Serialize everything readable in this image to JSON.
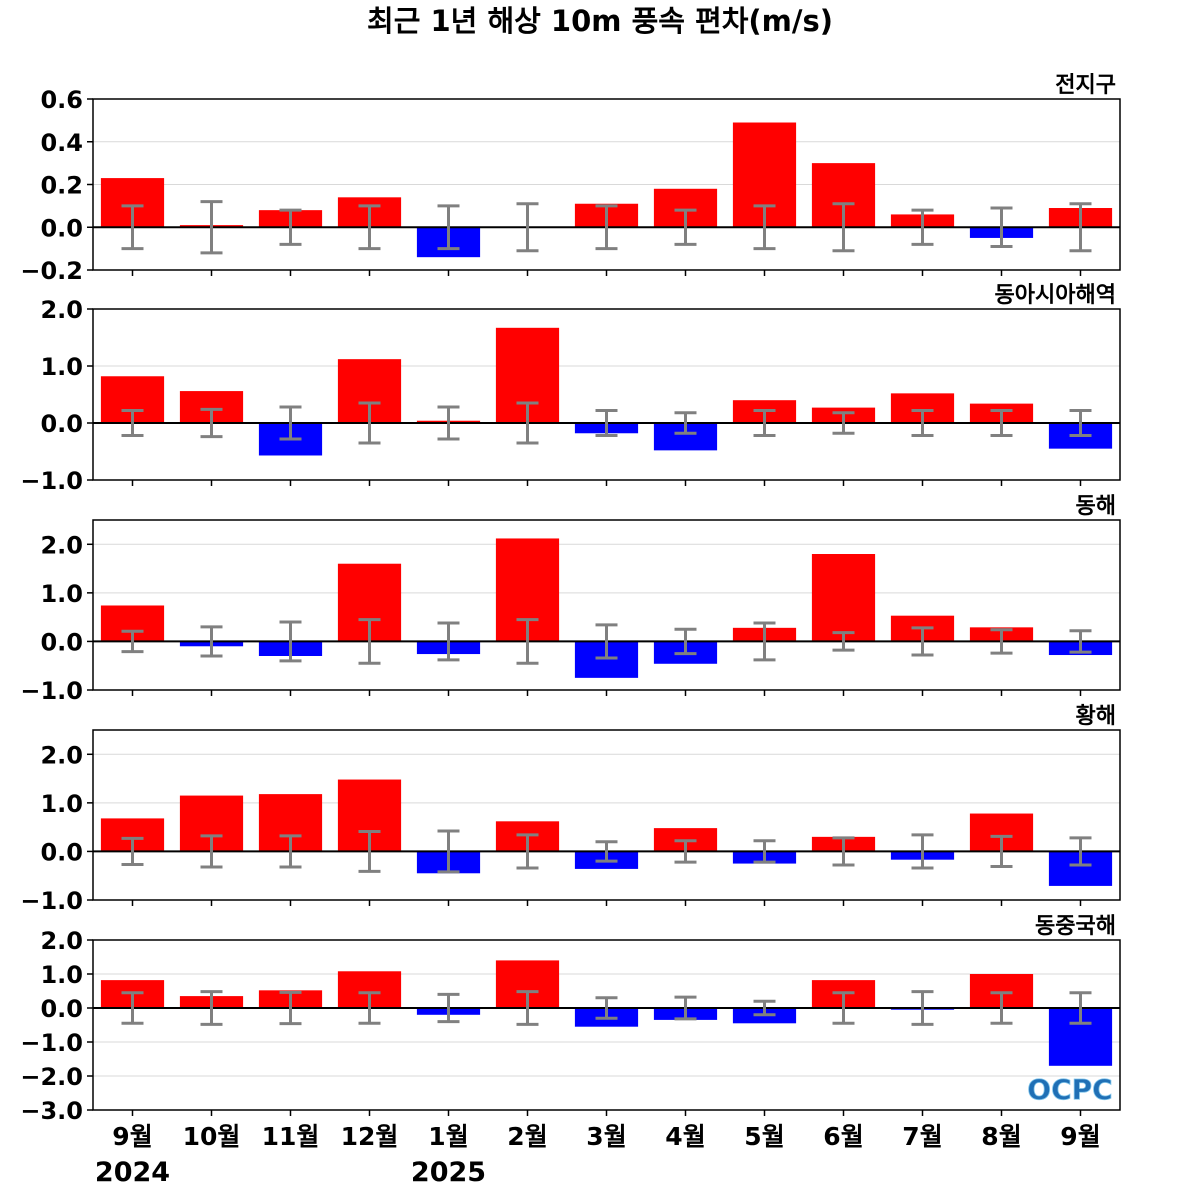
{
  "title": "최근 1년 해상 10m 풍속 편차(m/s)",
  "logo_text": "OCPC",
  "colors": {
    "positive": "#ff0000",
    "negative": "#0000ff",
    "errorbar": "#808080",
    "grid": "#d9d9d9",
    "zero": "#000000"
  },
  "x_axis": {
    "categories": [
      "9월",
      "10월",
      "11월",
      "12월",
      "1월",
      "2월",
      "3월",
      "4월",
      "5월",
      "6월",
      "7월",
      "8월",
      "9월"
    ],
    "years": [
      {
        "label": "2024",
        "index": 0
      },
      {
        "label": "2025",
        "index": 4
      }
    ]
  },
  "chart_data": [
    {
      "type": "bar",
      "title": "전지구",
      "categories": [
        "9월",
        "10월",
        "11월",
        "12월",
        "1월",
        "2월",
        "3월",
        "4월",
        "5월",
        "6월",
        "7월",
        "8월",
        "9월"
      ],
      "values": [
        0.23,
        0.01,
        0.08,
        0.14,
        -0.14,
        0.0,
        0.11,
        0.18,
        0.49,
        0.3,
        0.06,
        -0.05,
        0.09
      ],
      "errorbar": [
        0.1,
        0.12,
        0.08,
        0.1,
        0.1,
        0.11,
        0.1,
        0.08,
        0.1,
        0.11,
        0.08,
        0.09,
        0.11
      ],
      "ylim": [
        -0.2,
        0.6
      ],
      "yticks": [
        -0.2,
        0.0,
        0.2,
        0.4,
        0.6
      ],
      "ytick_labels": [
        "−0.2",
        "0.0",
        "0.2",
        "0.4",
        "0.6"
      ],
      "grid": true
    },
    {
      "type": "bar",
      "title": "동아시아해역",
      "categories": [
        "9월",
        "10월",
        "11월",
        "12월",
        "1월",
        "2월",
        "3월",
        "4월",
        "5월",
        "6월",
        "7월",
        "8월",
        "9월"
      ],
      "values": [
        0.82,
        0.56,
        -0.57,
        1.12,
        0.04,
        1.67,
        -0.18,
        -0.48,
        0.4,
        0.27,
        0.52,
        0.34,
        -0.45
      ],
      "errorbar": [
        0.22,
        0.24,
        0.28,
        0.35,
        0.28,
        0.35,
        0.22,
        0.18,
        0.22,
        0.18,
        0.22,
        0.22,
        0.22
      ],
      "ylim": [
        -1.0,
        2.0
      ],
      "yticks": [
        -1.0,
        0.0,
        1.0,
        2.0
      ],
      "ytick_labels": [
        "−1.0",
        "0.0",
        "1.0",
        "2.0"
      ],
      "grid": true
    },
    {
      "type": "bar",
      "title": "동해",
      "categories": [
        "9월",
        "10월",
        "11월",
        "12월",
        "1월",
        "2월",
        "3월",
        "4월",
        "5월",
        "6월",
        "7월",
        "8월",
        "9월"
      ],
      "values": [
        0.74,
        -0.1,
        -0.3,
        1.6,
        -0.26,
        2.12,
        -0.75,
        -0.46,
        0.28,
        1.8,
        0.53,
        0.29,
        -0.28
      ],
      "errorbar": [
        0.21,
        0.3,
        0.4,
        0.45,
        0.38,
        0.45,
        0.34,
        0.25,
        0.38,
        0.18,
        0.28,
        0.24,
        0.22
      ],
      "ylim": [
        -1.0,
        2.5
      ],
      "yticks": [
        -1.0,
        0.0,
        1.0,
        2.0
      ],
      "ytick_labels": [
        "−1.0",
        "0.0",
        "1.0",
        "2.0"
      ],
      "grid": true
    },
    {
      "type": "bar",
      "title": "황해",
      "categories": [
        "9월",
        "10월",
        "11월",
        "12월",
        "1월",
        "2월",
        "3월",
        "4월",
        "5월",
        "6월",
        "7월",
        "8월",
        "9월"
      ],
      "values": [
        0.68,
        1.15,
        1.18,
        1.48,
        -0.45,
        0.62,
        -0.36,
        0.48,
        -0.25,
        0.3,
        -0.17,
        0.78,
        -0.71
      ],
      "errorbar": [
        0.27,
        0.32,
        0.32,
        0.41,
        0.42,
        0.34,
        0.2,
        0.22,
        0.22,
        0.28,
        0.34,
        0.31,
        0.28
      ],
      "ylim": [
        -1.0,
        2.5
      ],
      "yticks": [
        -1.0,
        0.0,
        1.0,
        2.0
      ],
      "ytick_labels": [
        "−1.0",
        "0.0",
        "1.0",
        "2.0"
      ],
      "grid": true
    },
    {
      "type": "bar",
      "title": "동중국해",
      "categories": [
        "9월",
        "10월",
        "11월",
        "12월",
        "1월",
        "2월",
        "3월",
        "4월",
        "5월",
        "6월",
        "7월",
        "8월",
        "9월"
      ],
      "values": [
        0.82,
        0.35,
        0.52,
        1.08,
        -0.2,
        1.4,
        -0.55,
        -0.35,
        -0.45,
        0.82,
        -0.05,
        1.0,
        -1.7
      ],
      "errorbar": [
        0.45,
        0.48,
        0.46,
        0.45,
        0.4,
        0.48,
        0.3,
        0.32,
        0.2,
        0.45,
        0.48,
        0.45,
        0.45
      ],
      "ylim": [
        -3.0,
        2.0
      ],
      "yticks": [
        -3.0,
        -2.0,
        -1.0,
        0.0,
        1.0,
        2.0
      ],
      "ytick_labels": [
        "−3.0",
        "−2.0",
        "−1.0",
        "0.0",
        "1.0",
        "2.0"
      ],
      "grid": true
    }
  ]
}
